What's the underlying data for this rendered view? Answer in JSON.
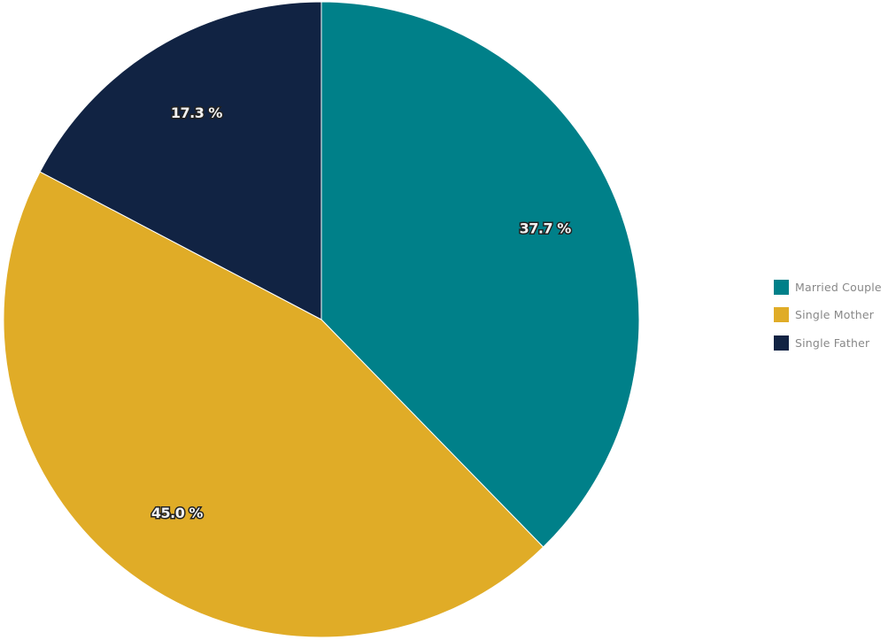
{
  "chart_data": {
    "type": "pie",
    "title": "",
    "slices": [
      {
        "name": "Married Couple",
        "value": 37.7,
        "label": "37.7 %",
        "color": "#008089"
      },
      {
        "name": "Single Mother",
        "value": 45.0,
        "label": "45.0 %",
        "color": "#e0ac27"
      },
      {
        "name": "Single Father",
        "value": 17.3,
        "label": "17.3 %",
        "color": "#112343"
      }
    ],
    "start_angle_deg": 0,
    "direction": "clockwise",
    "legend_position": "right"
  }
}
